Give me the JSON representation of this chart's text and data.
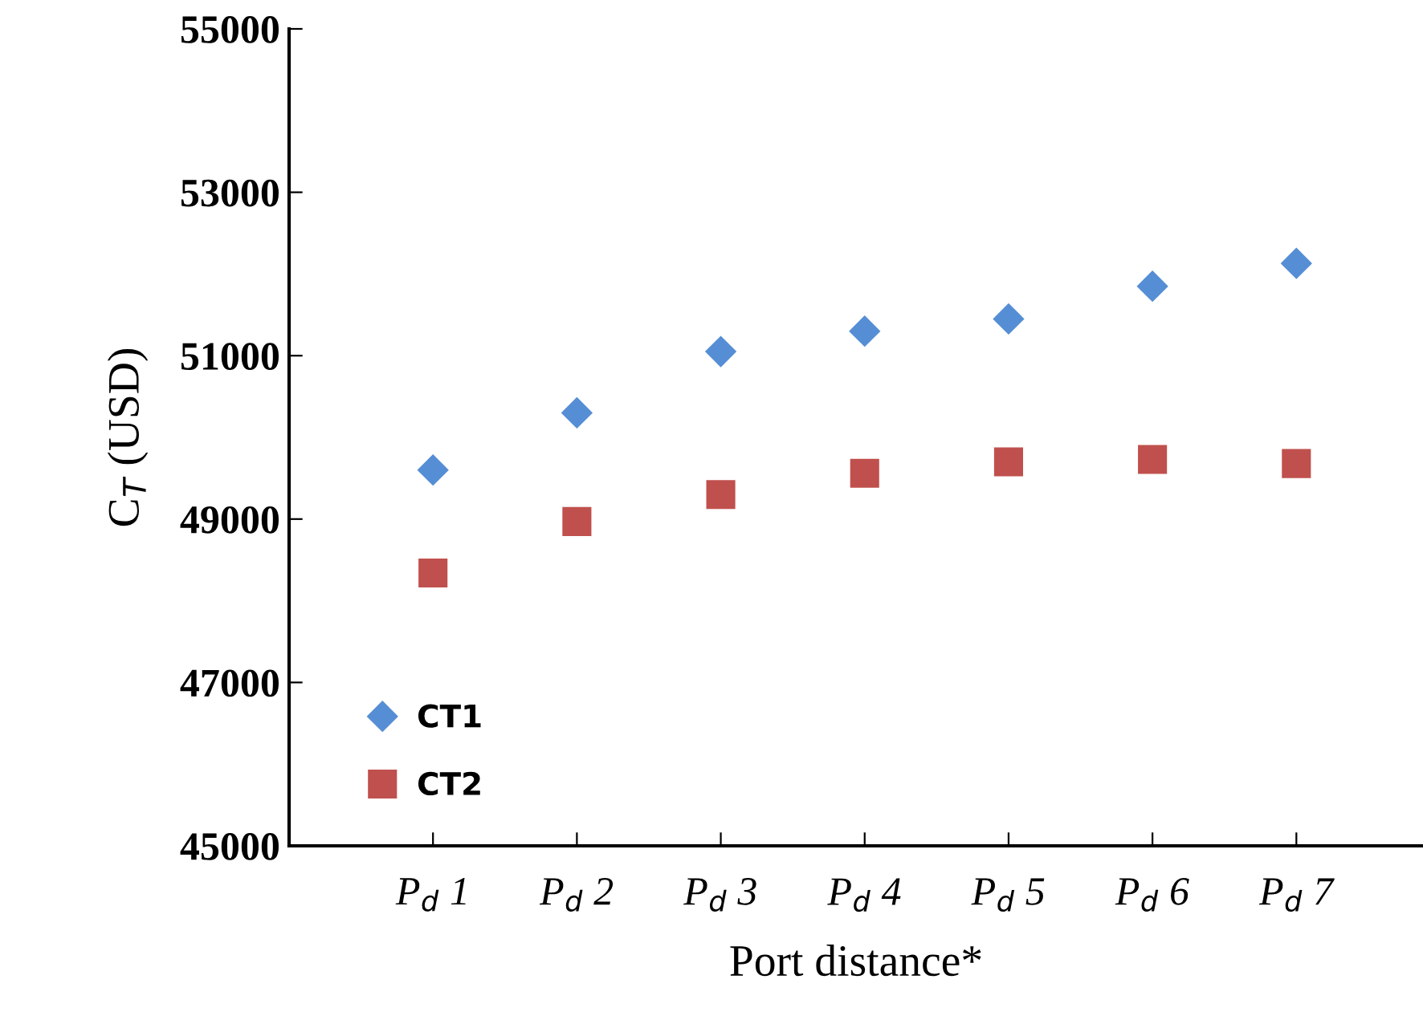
{
  "chart_data": {
    "type": "scatter",
    "xlabel": "Port distance*",
    "ylabel": "C$_{T}$ (USD)",
    "categories": [
      "P$_{d}$ 1",
      "P$_{d}$ 2",
      "P$_{d}$ 3",
      "P$_{d}$ 4",
      "P$_{d}$ 5",
      "P$_{d}$ 6",
      "P$_{d}$ 7"
    ],
    "series": [
      {
        "name": "CT1",
        "color": "#558ed5",
        "marker": "diamond",
        "values": [
          49600,
          50300,
          51050,
          51300,
          51450,
          51850,
          52130
        ]
      },
      {
        "name": "CT2",
        "color": "#c0504d",
        "marker": "square",
        "values": [
          48340,
          48970,
          49300,
          49560,
          49700,
          49730,
          49680
        ]
      }
    ],
    "ylim": [
      45000,
      55000
    ],
    "yticks": [
      45000,
      47000,
      49000,
      51000,
      53000,
      55000
    ],
    "grid": false,
    "legend": "bottom left"
  }
}
